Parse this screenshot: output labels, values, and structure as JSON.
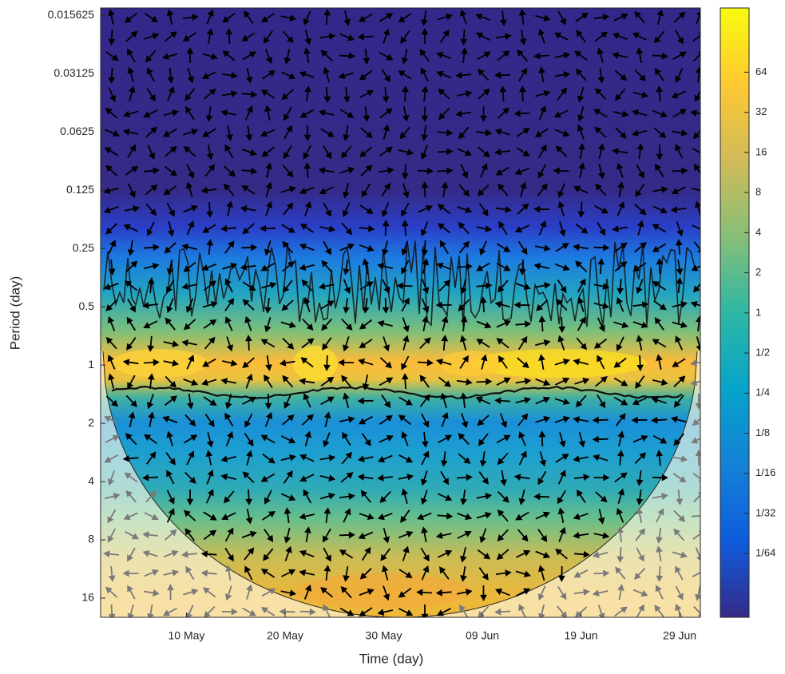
{
  "chart_data": {
    "type": "wavelet",
    "xlabel": "Time (day)",
    "ylabel": "Period (day)",
    "xlim": [
      1.3,
      62.1
    ],
    "xticks": [
      {
        "value": 10,
        "label": "10 May"
      },
      {
        "value": 20,
        "label": "20 May"
      },
      {
        "value": 30,
        "label": "30 May"
      },
      {
        "value": 40,
        "label": "09 Jun"
      },
      {
        "value": 50,
        "label": "19 Jun"
      },
      {
        "value": 60,
        "label": "29 Jun"
      }
    ],
    "ylim": [
      0.0143,
      20.1
    ],
    "y_scale": "log2",
    "y_reverse": true,
    "yticks": [
      0.015625,
      0.03125,
      0.0625,
      0.125,
      0.25,
      0.5,
      1,
      2,
      4,
      8,
      16
    ],
    "colorbar": {
      "scale": "log2",
      "lim": [
        0.0052,
        194
      ],
      "ticks": [
        64,
        32,
        16,
        8,
        4,
        2,
        1,
        {
          "value": 0.5,
          "label": "1/2"
        },
        {
          "value": 0.25,
          "label": "1/4"
        },
        {
          "value": 0.125,
          "label": "1/8"
        },
        {
          "value": 0.0625,
          "label": "1/16"
        },
        {
          "value": 0.03125,
          "label": "1/32"
        },
        {
          "value": 0.015625,
          "label": "1/64"
        }
      ],
      "colormap": [
        "#352a87",
        "#0f5cdd",
        "#1481d6",
        "#06a4ca",
        "#2eb7a4",
        "#87bf77",
        "#d1bb59",
        "#fec832",
        "#f9fb0e"
      ]
    }
  }
}
